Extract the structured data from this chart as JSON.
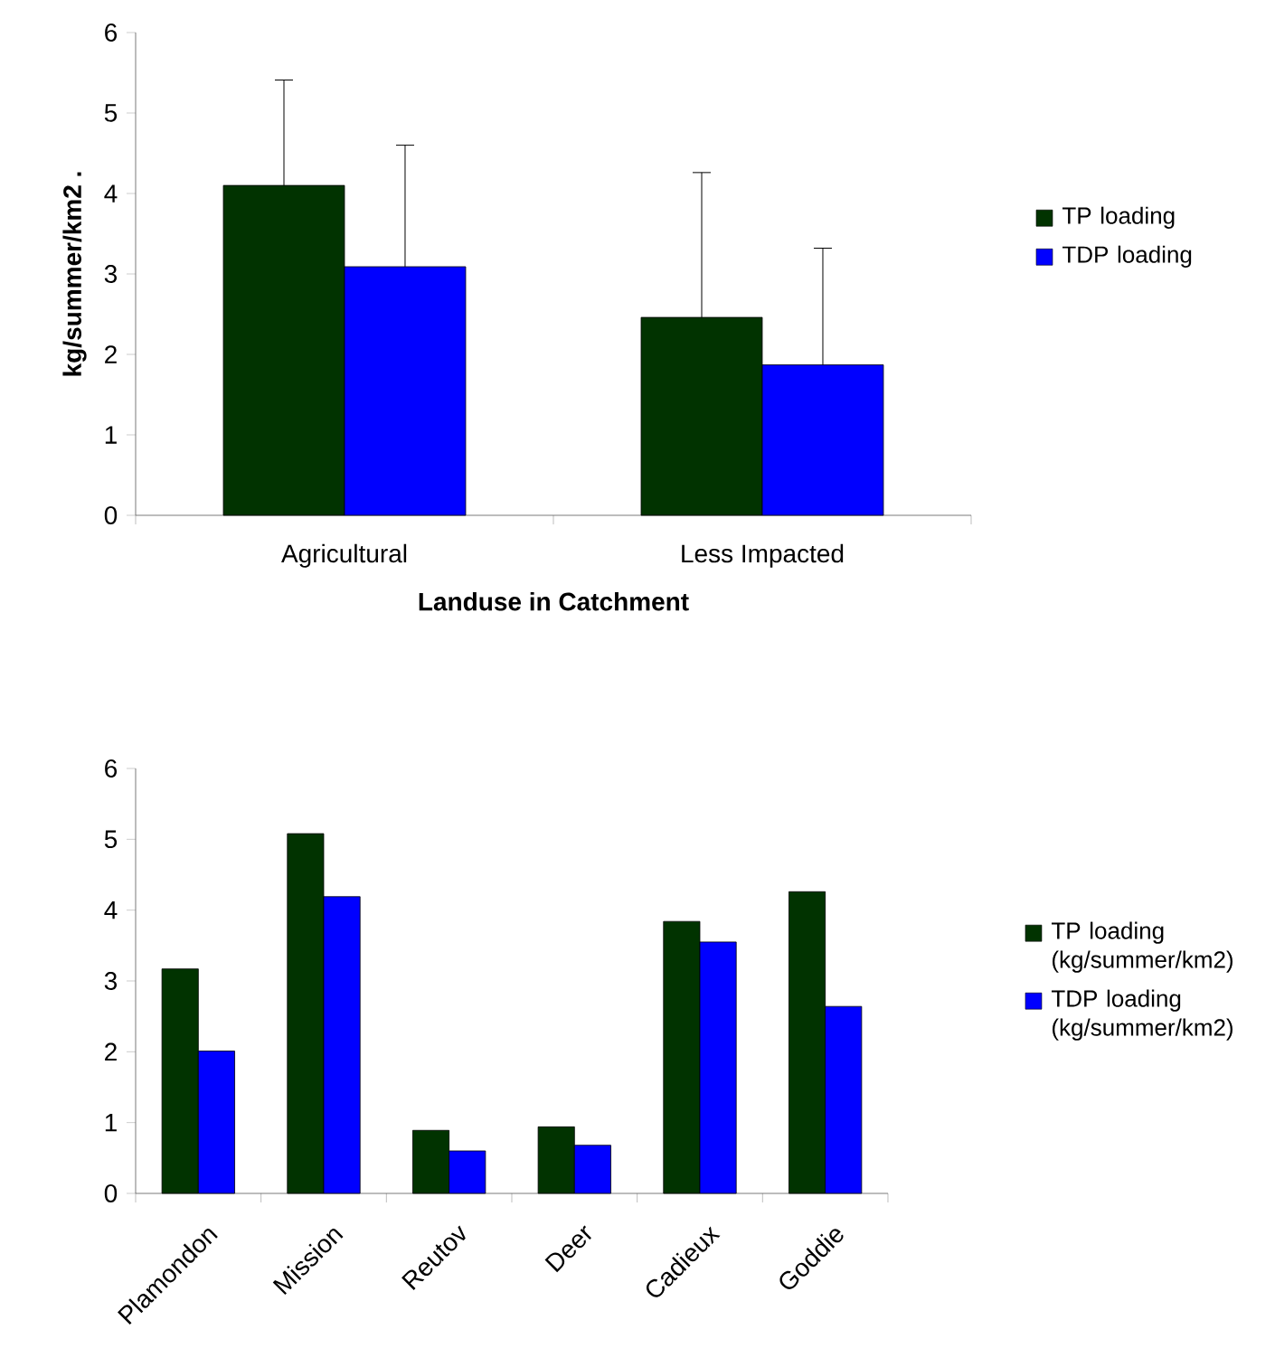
{
  "chart_data": [
    {
      "type": "bar",
      "xlabel": "Landuse in Catchment",
      "ylabel": "kg/summer/km2 .",
      "categories": [
        "Agricultural",
        "Less Impacted"
      ],
      "ylim": [
        0,
        6
      ],
      "yticks": [
        0,
        1,
        2,
        3,
        4,
        5,
        6
      ],
      "legend": "right",
      "series": [
        {
          "name": "TP loading",
          "color": "#013300",
          "values": [
            4.1,
            2.46
          ],
          "errors": [
            [
              4.1,
              5.41
            ],
            [
              2.46,
              4.26
            ]
          ]
        },
        {
          "name": "TDP loading",
          "color": "#0000ff",
          "values": [
            3.09,
            1.87
          ],
          "errors": [
            [
              3.09,
              4.6
            ],
            [
              1.87,
              3.32
            ]
          ]
        }
      ]
    },
    {
      "type": "bar",
      "categories": [
        "Plamondon",
        "Mission",
        "Reutov",
        "Deer",
        "Cadieux",
        "Goddie"
      ],
      "ylim": [
        0,
        6
      ],
      "yticks": [
        0,
        1,
        2,
        3,
        4,
        5,
        6
      ],
      "legend": "right",
      "series": [
        {
          "name": "TP loading (kg/summer/km2)",
          "color": "#013300",
          "values": [
            3.17,
            5.08,
            0.89,
            0.94,
            3.84,
            4.26
          ]
        },
        {
          "name": "TDP loading (kg/summer/km2)",
          "color": "#0000ff",
          "values": [
            2.01,
            4.19,
            0.6,
            0.68,
            3.55,
            2.64
          ]
        }
      ]
    }
  ]
}
